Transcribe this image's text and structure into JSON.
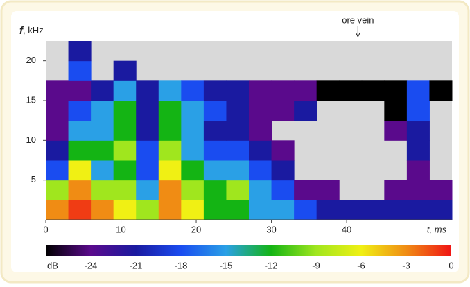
{
  "chart_data": {
    "type": "heatmap",
    "y_label_symbol": "f",
    "y_label_unit": ", kHz",
    "x_label": "t, ms",
    "annotations": [
      {
        "text": "ore vein",
        "x": 41.5
      }
    ],
    "xlim": [
      0,
      54
    ],
    "ylim": [
      0,
      22.5
    ],
    "xticks": [
      0,
      10,
      20,
      30,
      40
    ],
    "yticks": [
      5,
      10,
      15,
      20
    ],
    "x_bins": [
      0,
      3,
      6,
      9,
      12,
      15,
      18,
      21,
      24,
      27,
      30,
      33,
      36,
      39,
      42,
      45,
      48,
      51,
      54
    ],
    "y_bins": [
      0,
      2.5,
      5,
      7.5,
      10,
      12.5,
      15,
      17.5,
      20,
      22.5
    ],
    "z": [
      [
        -3,
        -1,
        -3,
        -6,
        -9,
        -3,
        -6,
        -12,
        -12,
        -15,
        -15,
        -18,
        -21,
        -21,
        -21,
        -21,
        -21,
        -21
      ],
      [
        -9,
        -3,
        -9,
        -9,
        -15,
        -3,
        -9,
        -12,
        -9,
        -15,
        -18,
        -24,
        -24,
        null,
        null,
        -24,
        -24,
        -24
      ],
      [
        -18,
        -6,
        -15,
        -12,
        -18,
        -6,
        -12,
        -15,
        -15,
        -18,
        -21,
        null,
        null,
        null,
        null,
        null,
        -24,
        null
      ],
      [
        -21,
        -12,
        -12,
        -9,
        -18,
        -9,
        -15,
        -18,
        -18,
        -21,
        -24,
        null,
        null,
        null,
        null,
        null,
        -21,
        null
      ],
      [
        -24,
        -15,
        -15,
        -12,
        -21,
        -12,
        -15,
        -21,
        -21,
        -24,
        null,
        null,
        null,
        null,
        null,
        -24,
        -21,
        null
      ],
      [
        -24,
        -18,
        -15,
        -12,
        -21,
        -12,
        -15,
        -18,
        -21,
        -24,
        -24,
        -21,
        null,
        null,
        null,
        -27,
        -18,
        null
      ],
      [
        -24,
        -24,
        -21,
        -15,
        -21,
        -15,
        -18,
        -21,
        -21,
        -24,
        -24,
        -24,
        -27,
        -27,
        -27,
        -27,
        -18,
        -27
      ],
      [
        null,
        -18,
        null,
        -21,
        null,
        null,
        null,
        null,
        null,
        null,
        null,
        null,
        null,
        null,
        null,
        null,
        null,
        null
      ],
      [
        null,
        -21,
        null,
        null,
        null,
        null,
        null,
        null,
        null,
        null,
        null,
        null,
        null,
        null,
        null,
        null,
        null,
        null
      ]
    ],
    "zlim": [
      -27,
      0
    ],
    "colorbar_label": "dB",
    "zticks": [
      -24,
      -21,
      -18,
      -15,
      -12,
      -9,
      -6,
      -3,
      0
    ],
    "colormap": [
      "#000000",
      "#5a0a8c",
      "#1a1aa0",
      "#1a4cf0",
      "#2aa0e6",
      "#14b414",
      "#a0e61e",
      "#f0f014",
      "#f08c14",
      "#f01414"
    ],
    "background": "#d9d9d9"
  }
}
